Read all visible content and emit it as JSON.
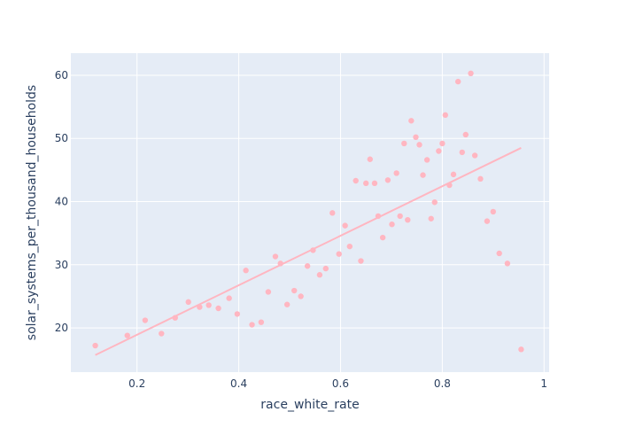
{
  "chart_data": {
    "type": "scatter",
    "xlabel": "race_white_rate",
    "ylabel": "solar_systems_per_thousand_households",
    "xlim": [
      0.07,
      1.01
    ],
    "ylim": [
      13,
      63.5
    ],
    "x_ticks": [
      0.2,
      0.4,
      0.6,
      0.8,
      1
    ],
    "x_tick_labels": [
      "0.2",
      "0.4",
      "0.6",
      "0.8",
      "1"
    ],
    "y_ticks": [
      20,
      30,
      40,
      50,
      60
    ],
    "y_tick_labels": [
      "20",
      "30",
      "40",
      "50",
      "60"
    ],
    "grid": true,
    "colors": {
      "plot_bg": "#E5ECF6",
      "grid": "#ffffff",
      "marker": "#FFB6C1",
      "trend": "#FFB6C1",
      "text": "#2a3f5f"
    },
    "series": [
      {
        "mode": "markers",
        "points": [
          [
            0.118,
            17.2
          ],
          [
            0.181,
            18.8
          ],
          [
            0.216,
            21.2
          ],
          [
            0.248,
            19.1
          ],
          [
            0.275,
            21.6
          ],
          [
            0.301,
            24.1
          ],
          [
            0.323,
            23.3
          ],
          [
            0.341,
            23.6
          ],
          [
            0.36,
            23.1
          ],
          [
            0.381,
            24.7
          ],
          [
            0.397,
            22.2
          ],
          [
            0.414,
            29.1
          ],
          [
            0.426,
            20.5
          ],
          [
            0.444,
            20.9
          ],
          [
            0.458,
            25.7
          ],
          [
            0.472,
            31.3
          ],
          [
            0.482,
            30.2
          ],
          [
            0.495,
            23.7
          ],
          [
            0.509,
            25.9
          ],
          [
            0.522,
            25.0
          ],
          [
            0.535,
            29.8
          ],
          [
            0.546,
            32.3
          ],
          [
            0.559,
            28.4
          ],
          [
            0.571,
            29.4
          ],
          [
            0.584,
            38.2
          ],
          [
            0.597,
            31.7
          ],
          [
            0.609,
            36.2
          ],
          [
            0.618,
            32.9
          ],
          [
            0.63,
            43.3
          ],
          [
            0.64,
            30.6
          ],
          [
            0.65,
            42.9
          ],
          [
            0.658,
            46.7
          ],
          [
            0.667,
            42.9
          ],
          [
            0.674,
            37.7
          ],
          [
            0.683,
            34.3
          ],
          [
            0.693,
            43.4
          ],
          [
            0.701,
            36.4
          ],
          [
            0.71,
            44.5
          ],
          [
            0.717,
            37.7
          ],
          [
            0.725,
            49.2
          ],
          [
            0.732,
            37.1
          ],
          [
            0.739,
            52.8
          ],
          [
            0.748,
            50.2
          ],
          [
            0.755,
            49.0
          ],
          [
            0.762,
            44.2
          ],
          [
            0.77,
            46.6
          ],
          [
            0.778,
            37.3
          ],
          [
            0.785,
            39.9
          ],
          [
            0.793,
            48.0
          ],
          [
            0.8,
            49.2
          ],
          [
            0.806,
            53.7
          ],
          [
            0.814,
            42.6
          ],
          [
            0.822,
            44.3
          ],
          [
            0.831,
            59.0
          ],
          [
            0.839,
            47.8
          ],
          [
            0.846,
            50.6
          ],
          [
            0.856,
            60.3
          ],
          [
            0.864,
            47.3
          ],
          [
            0.875,
            43.6
          ],
          [
            0.888,
            36.9
          ],
          [
            0.9,
            38.4
          ],
          [
            0.912,
            31.8
          ],
          [
            0.928,
            30.2
          ],
          [
            0.955,
            16.6
          ]
        ]
      },
      {
        "mode": "lines",
        "points": [
          [
            0.118,
            15.7
          ],
          [
            0.955,
            48.5
          ]
        ]
      }
    ]
  }
}
